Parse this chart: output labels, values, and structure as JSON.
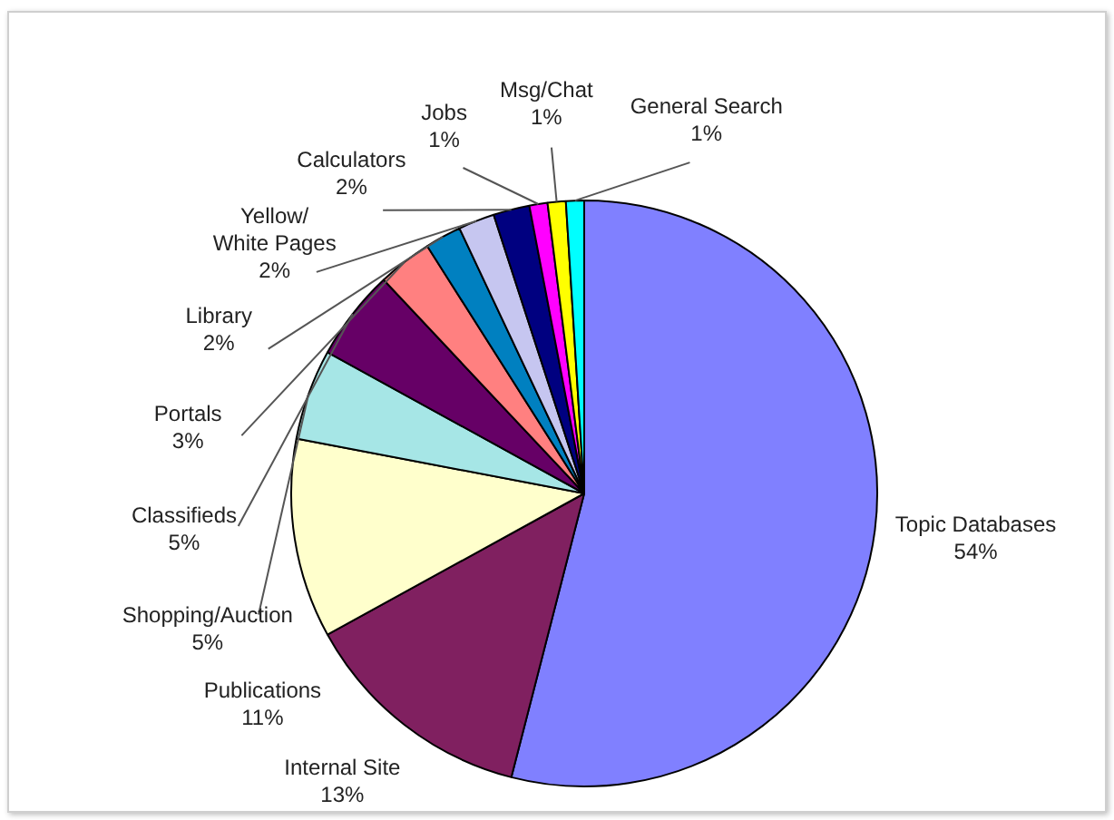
{
  "chart_data": {
    "type": "pie",
    "categories": [
      "Topic Databases",
      "Internal Site",
      "Publications",
      "Shopping/Auction",
      "Classifieds",
      "Portals",
      "Library",
      "Yellow/\nWhite Pages",
      "Calculators",
      "Jobs",
      "Msg/Chat",
      "General Search"
    ],
    "values": [
      54,
      13,
      11,
      5,
      5,
      3,
      2,
      2,
      2,
      1,
      1,
      1
    ],
    "value_labels": [
      "54%",
      "13%",
      "11%",
      "5%",
      "5%",
      "3%",
      "2%",
      "2%",
      "2%",
      "1%",
      "1%",
      "1%"
    ],
    "colors": [
      "#8080ff",
      "#802060",
      "#ffffcc",
      "#a6e6e6",
      "#660066",
      "#ff8080",
      "#0080c0",
      "#c6c6f0",
      "#000080",
      "#ff00ff",
      "#ffff00",
      "#00ffff"
    ],
    "legend": false
  }
}
